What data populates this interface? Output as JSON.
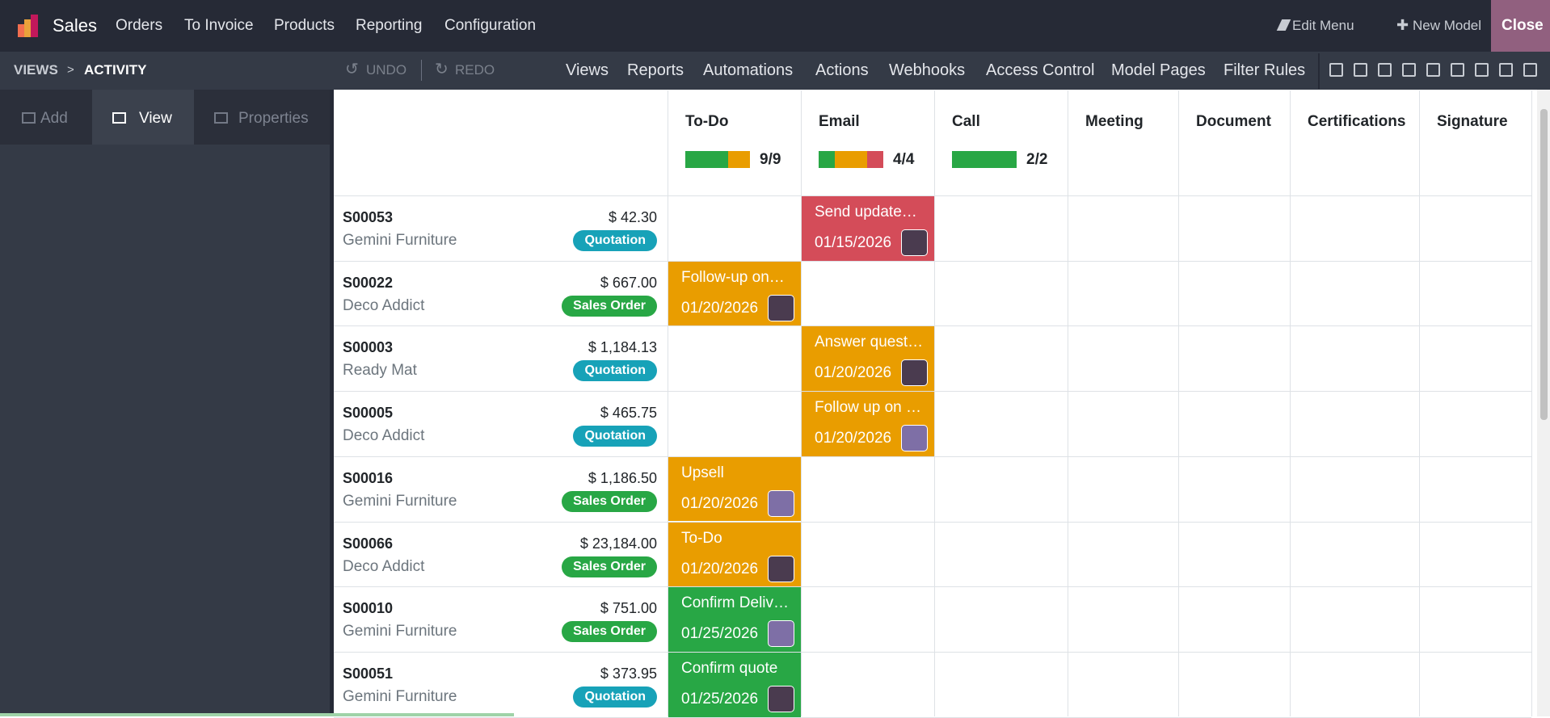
{
  "navbar": {
    "app": "Sales",
    "menu": [
      "Orders",
      "To Invoice",
      "Products",
      "Reporting",
      "Configuration"
    ],
    "edit_menu": "Edit Menu",
    "new_model": "New Model",
    "close": "Close"
  },
  "studio_bar": {
    "breadcrumb": [
      "VIEWS",
      "ACTIVITY"
    ],
    "separator": ">",
    "undo": "UNDO",
    "redo": "REDO",
    "tabs": [
      "Views",
      "Reports",
      "Automations",
      "Actions",
      "Webhooks",
      "Access Control",
      "Model Pages",
      "Filter Rules"
    ]
  },
  "sidebar": {
    "tabs": [
      "Add",
      "View",
      "Properties"
    ]
  },
  "activity_view": {
    "columns": [
      {
        "name": "To-Do",
        "count_label": "9/9",
        "progress": [
          {
            "count": 6,
            "color": "#28a745"
          },
          {
            "count": 3,
            "color": "#e99d00"
          }
        ]
      },
      {
        "name": "Email",
        "count_label": "4/4",
        "progress": [
          {
            "count": 1,
            "color": "#28a745"
          },
          {
            "count": 2,
            "color": "#e99d00"
          },
          {
            "count": 1,
            "color": "#d44c59"
          }
        ]
      },
      {
        "name": "Call",
        "count_label": "2/2",
        "progress": [
          {
            "count": 2,
            "color": "#28a745"
          }
        ]
      },
      {
        "name": "Meeting"
      },
      {
        "name": "Document"
      },
      {
        "name": "Certifications"
      },
      {
        "name": "Signature"
      }
    ],
    "records": [
      {
        "name": "S00053",
        "amount": "$ 42.30",
        "customer": "Gemini Furniture",
        "status": "Quotation",
        "cells": [
          null,
          {
            "summary": "Send update…",
            "date": "01/15/2026",
            "color": "#d44c59"
          },
          null,
          null,
          null,
          null,
          null
        ]
      },
      {
        "name": "S00022",
        "amount": "$ 667.00",
        "customer": "Deco Addict",
        "status": "Sales Order",
        "cells": [
          {
            "summary": "Follow-up on…",
            "date": "01/20/2026",
            "color": "#e99d00"
          },
          null,
          null,
          null,
          null,
          null,
          null
        ]
      },
      {
        "name": "S00003",
        "amount": "$ 1,184.13",
        "customer": "Ready Mat",
        "status": "Quotation",
        "cells": [
          null,
          {
            "summary": "Answer quest…",
            "date": "01/20/2026",
            "color": "#e99d00"
          },
          null,
          null,
          null,
          null,
          null
        ]
      },
      {
        "name": "S00005",
        "amount": "$ 465.75",
        "customer": "Deco Addict",
        "status": "Quotation",
        "cells": [
          null,
          {
            "summary": "Follow up on …",
            "date": "01/20/2026",
            "color": "#e99d00"
          },
          null,
          null,
          null,
          null,
          null
        ]
      },
      {
        "name": "S00016",
        "amount": "$ 1,186.50",
        "customer": "Gemini Furniture",
        "status": "Sales Order",
        "cells": [
          {
            "summary": "Upsell",
            "date": "01/20/2026",
            "color": "#e99d00"
          },
          null,
          null,
          null,
          null,
          null,
          null
        ]
      },
      {
        "name": "S00066",
        "amount": "$ 23,184.00",
        "customer": "Deco Addict",
        "status": "Sales Order",
        "cells": [
          {
            "summary": "To-Do",
            "date": "01/20/2026",
            "color": "#e99d00"
          },
          null,
          null,
          null,
          null,
          null,
          null
        ]
      },
      {
        "name": "S00010",
        "amount": "$ 751.00",
        "customer": "Gemini Furniture",
        "status": "Sales Order",
        "cells": [
          {
            "summary": "Confirm Deliv…",
            "date": "01/25/2026",
            "color": "#28a745"
          },
          null,
          null,
          null,
          null,
          null,
          null
        ]
      },
      {
        "name": "S00051",
        "amount": "$ 373.95",
        "customer": "Gemini Furniture",
        "status": "Quotation",
        "cells": [
          {
            "summary": "Confirm quote",
            "date": "01/25/2026",
            "color": "#28a745"
          },
          null,
          null,
          null,
          null,
          null,
          null
        ]
      }
    ]
  }
}
